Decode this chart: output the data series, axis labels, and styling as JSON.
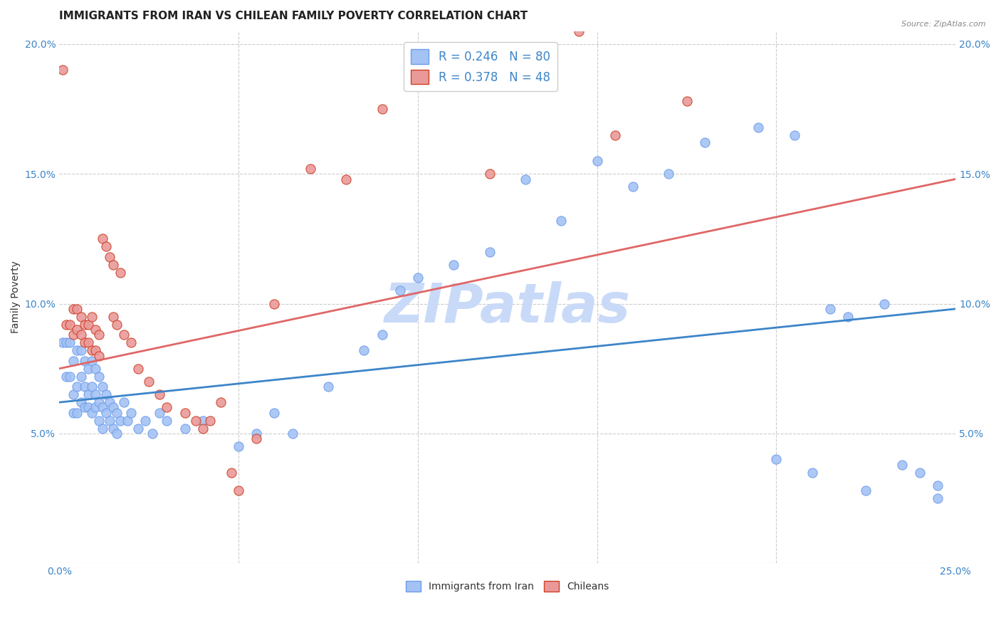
{
  "title": "IMMIGRANTS FROM IRAN VS CHILEAN FAMILY POVERTY CORRELATION CHART",
  "source": "Source: ZipAtlas.com",
  "ylabel": "Family Poverty",
  "xlim": [
    0.0,
    0.25
  ],
  "ylim": [
    0.0,
    0.205
  ],
  "yticks": [
    0.05,
    0.1,
    0.15,
    0.2
  ],
  "yticklabels": [
    "5.0%",
    "10.0%",
    "15.0%",
    "20.0%"
  ],
  "xtick_left": "0.0%",
  "xtick_right": "25.0%",
  "blue_color": "#a4c2f4",
  "pink_color": "#ea9999",
  "blue_line_color": "#3d85c8",
  "pink_line_color": "#e06666",
  "blue_edge_color": "#6d9eeb",
  "pink_edge_color": "#cc4125",
  "watermark": "ZIPatlas",
  "legend_bottom_label1": "Immigrants from Iran",
  "legend_bottom_label2": "Chileans",
  "blue_line_x": [
    0.0,
    0.25
  ],
  "blue_line_y": [
    0.062,
    0.098
  ],
  "pink_line_x": [
    0.0,
    0.25
  ],
  "pink_line_y": [
    0.075,
    0.148
  ],
  "grid_color": "#cccccc",
  "bg_color": "#ffffff",
  "title_fontsize": 11,
  "axis_label_fontsize": 10,
  "tick_fontsize": 10,
  "watermark_color": "#c9daf8",
  "watermark_fontsize": 55,
  "blue_scatter_x": [
    0.001,
    0.002,
    0.002,
    0.003,
    0.003,
    0.004,
    0.004,
    0.004,
    0.005,
    0.005,
    0.005,
    0.006,
    0.006,
    0.006,
    0.007,
    0.007,
    0.007,
    0.008,
    0.008,
    0.008,
    0.009,
    0.009,
    0.009,
    0.01,
    0.01,
    0.01,
    0.011,
    0.011,
    0.011,
    0.012,
    0.012,
    0.012,
    0.013,
    0.013,
    0.014,
    0.014,
    0.015,
    0.015,
    0.016,
    0.016,
    0.017,
    0.018,
    0.019,
    0.02,
    0.022,
    0.024,
    0.026,
    0.028,
    0.03,
    0.035,
    0.04,
    0.05,
    0.055,
    0.06,
    0.065,
    0.075,
    0.085,
    0.09,
    0.095,
    0.1,
    0.11,
    0.12,
    0.13,
    0.14,
    0.15,
    0.16,
    0.17,
    0.18,
    0.195,
    0.205,
    0.215,
    0.22,
    0.23,
    0.235,
    0.24,
    0.245,
    0.2,
    0.21,
    0.225,
    0.245
  ],
  "blue_scatter_y": [
    0.085,
    0.072,
    0.085,
    0.072,
    0.085,
    0.078,
    0.065,
    0.058,
    0.082,
    0.068,
    0.058,
    0.082,
    0.072,
    0.062,
    0.078,
    0.068,
    0.06,
    0.075,
    0.065,
    0.06,
    0.078,
    0.068,
    0.058,
    0.075,
    0.065,
    0.06,
    0.072,
    0.062,
    0.055,
    0.068,
    0.06,
    0.052,
    0.065,
    0.058,
    0.062,
    0.055,
    0.06,
    0.052,
    0.058,
    0.05,
    0.055,
    0.062,
    0.055,
    0.058,
    0.052,
    0.055,
    0.05,
    0.058,
    0.055,
    0.052,
    0.055,
    0.045,
    0.05,
    0.058,
    0.05,
    0.068,
    0.082,
    0.088,
    0.105,
    0.11,
    0.115,
    0.12,
    0.148,
    0.132,
    0.155,
    0.145,
    0.15,
    0.162,
    0.168,
    0.165,
    0.098,
    0.095,
    0.1,
    0.038,
    0.035,
    0.03,
    0.04,
    0.035,
    0.028,
    0.025
  ],
  "pink_scatter_x": [
    0.001,
    0.002,
    0.003,
    0.004,
    0.004,
    0.005,
    0.005,
    0.006,
    0.006,
    0.007,
    0.007,
    0.008,
    0.008,
    0.009,
    0.009,
    0.01,
    0.01,
    0.011,
    0.011,
    0.012,
    0.013,
    0.014,
    0.015,
    0.015,
    0.016,
    0.017,
    0.018,
    0.02,
    0.022,
    0.025,
    0.028,
    0.03,
    0.035,
    0.038,
    0.04,
    0.042,
    0.045,
    0.048,
    0.05,
    0.055,
    0.06,
    0.07,
    0.08,
    0.09,
    0.12,
    0.145,
    0.155,
    0.175
  ],
  "pink_scatter_y": [
    0.19,
    0.092,
    0.092,
    0.098,
    0.088,
    0.098,
    0.09,
    0.095,
    0.088,
    0.092,
    0.085,
    0.092,
    0.085,
    0.095,
    0.082,
    0.09,
    0.082,
    0.088,
    0.08,
    0.125,
    0.122,
    0.118,
    0.115,
    0.095,
    0.092,
    0.112,
    0.088,
    0.085,
    0.075,
    0.07,
    0.065,
    0.06,
    0.058,
    0.055,
    0.052,
    0.055,
    0.062,
    0.035,
    0.028,
    0.048,
    0.1,
    0.152,
    0.148,
    0.175,
    0.15,
    0.205,
    0.165,
    0.178
  ]
}
